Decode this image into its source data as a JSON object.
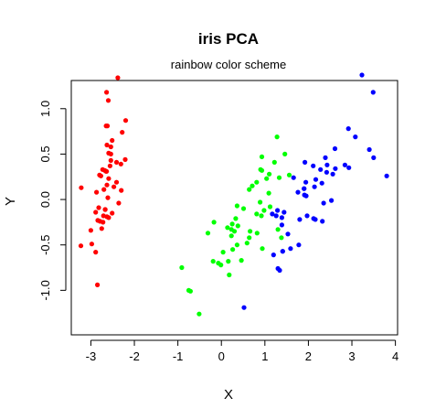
{
  "chart_data": {
    "type": "scatter",
    "title": "iris PCA",
    "subtitle": "rainbow color scheme",
    "xlabel": "X",
    "ylabel": "Y",
    "xlim": [
      -3.45,
      4.05
    ],
    "ylim": [
      -1.49,
      1.31
    ],
    "x_ticks": [
      -3,
      -2,
      -1,
      0,
      1,
      2,
      3,
      4
    ],
    "x_tick_labels": [
      "-3",
      "-2",
      "-1",
      "0",
      "1",
      "2",
      "3",
      "4"
    ],
    "y_ticks": [
      -1.0,
      -0.5,
      0.0,
      0.5,
      1.0
    ],
    "y_tick_labels": [
      "-1.0",
      "-0.5",
      "0.0",
      "0.5",
      "1.0"
    ],
    "grid": false,
    "series": [
      {
        "color": "#FF0000",
        "points": [
          [
            -2.68,
            0.32
          ],
          [
            -2.71,
            -0.18
          ],
          [
            -2.89,
            -0.14
          ],
          [
            -2.75,
            -0.32
          ],
          [
            -2.73,
            0.33
          ],
          [
            -2.28,
            0.74
          ],
          [
            -2.82,
            -0.09
          ],
          [
            -2.63,
            0.16
          ],
          [
            -2.89,
            -0.58
          ],
          [
            -2.67,
            -0.11
          ],
          [
            -2.51,
            0.65
          ],
          [
            -2.61,
            0.02
          ],
          [
            -2.79,
            -0.24
          ],
          [
            -3.23,
            -0.51
          ],
          [
            -2.64,
            1.18
          ],
          [
            -2.38,
            1.34
          ],
          [
            -2.62,
            0.81
          ],
          [
            -2.65,
            0.31
          ],
          [
            -2.2,
            0.87
          ],
          [
            -2.59,
            0.51
          ],
          [
            -2.31,
            0.39
          ],
          [
            -2.54,
            0.43
          ],
          [
            -3.22,
            0.13
          ],
          [
            -2.3,
            0.1
          ],
          [
            -2.36,
            -0.04
          ],
          [
            -2.51,
            -0.15
          ],
          [
            -2.47,
            0.14
          ],
          [
            -2.56,
            0.37
          ],
          [
            -2.64,
            0.31
          ],
          [
            -2.63,
            -0.19
          ],
          [
            -2.59,
            -0.2
          ],
          [
            -2.41,
            0.41
          ],
          [
            -2.65,
            0.81
          ],
          [
            -2.6,
            1.09
          ],
          [
            -2.67,
            -0.11
          ],
          [
            -2.87,
            0.08
          ],
          [
            -2.63,
            0.6
          ],
          [
            -2.8,
            0.27
          ],
          [
            -2.98,
            -0.49
          ],
          [
            -2.59,
            0.23
          ],
          [
            -2.77,
            0.26
          ],
          [
            -2.85,
            -0.94
          ],
          [
            -3.0,
            -0.34
          ],
          [
            -2.41,
            0.19
          ],
          [
            -2.21,
            0.44
          ],
          [
            -2.72,
            -0.25
          ],
          [
            -2.54,
            0.5
          ],
          [
            -2.84,
            -0.23
          ],
          [
            -2.54,
            0.58
          ],
          [
            -2.7,
            0.11
          ]
        ]
      },
      {
        "color": "#00FF00",
        "points": [
          [
            1.28,
            0.69
          ],
          [
            0.93,
            0.32
          ],
          [
            1.46,
            0.5
          ],
          [
            0.18,
            -0.83
          ],
          [
            1.09,
            0.07
          ],
          [
            0.64,
            -0.42
          ],
          [
            1.1,
            0.28
          ],
          [
            -0.75,
            -1.0
          ],
          [
            1.04,
            0.23
          ],
          [
            -0.01,
            -0.72
          ],
          [
            -0.51,
            -1.26
          ],
          [
            0.51,
            -0.1
          ],
          [
            0.26,
            -0.55
          ],
          [
            0.98,
            -0.12
          ],
          [
            -0.17,
            -0.25
          ],
          [
            0.93,
            0.47
          ],
          [
            0.66,
            -0.35
          ],
          [
            0.23,
            -0.33
          ],
          [
            0.94,
            -0.54
          ],
          [
            0.04,
            -0.58
          ],
          [
            1.12,
            -0.08
          ],
          [
            0.36,
            -0.07
          ],
          [
            1.3,
            -0.33
          ],
          [
            0.92,
            -0.18
          ],
          [
            0.71,
            0.15
          ],
          [
            0.9,
            0.33
          ],
          [
            1.33,
            0.24
          ],
          [
            1.56,
            0.27
          ],
          [
            0.81,
            -0.16
          ],
          [
            -0.31,
            -0.37
          ],
          [
            -0.07,
            -0.7
          ],
          [
            -0.19,
            -0.68
          ],
          [
            0.14,
            -0.31
          ],
          [
            1.38,
            -0.42
          ],
          [
            0.59,
            -0.48
          ],
          [
            0.81,
            0.19
          ],
          [
            1.22,
            0.41
          ],
          [
            0.82,
            -0.37
          ],
          [
            0.25,
            -0.27
          ],
          [
            0.16,
            -0.68
          ],
          [
            0.46,
            -0.67
          ],
          [
            0.89,
            -0.03
          ],
          [
            0.23,
            -0.4
          ],
          [
            -0.71,
            -1.01
          ],
          [
            0.36,
            -0.5
          ],
          [
            0.33,
            -0.21
          ],
          [
            0.38,
            -0.29
          ],
          [
            0.64,
            0.11
          ],
          [
            -0.91,
            -0.75
          ],
          [
            0.3,
            -0.35
          ]
        ]
      },
      {
        "color": "#0000FF",
        "points": [
          [
            2.53,
            -0.01
          ],
          [
            1.41,
            -0.57
          ],
          [
            2.62,
            0.34
          ],
          [
            1.97,
            -0.18
          ],
          [
            2.35,
            -0.04
          ],
          [
            3.4,
            0.55
          ],
          [
            0.52,
            -1.19
          ],
          [
            2.93,
            0.35
          ],
          [
            2.32,
            -0.24
          ],
          [
            2.92,
            0.78
          ],
          [
            1.66,
            0.24
          ],
          [
            1.8,
            -0.22
          ],
          [
            2.17,
            0.22
          ],
          [
            1.34,
            -0.78
          ],
          [
            1.59,
            -0.54
          ],
          [
            1.9,
            0.12
          ],
          [
            1.95,
            0.04
          ],
          [
            3.49,
            1.18
          ],
          [
            3.8,
            0.26
          ],
          [
            1.3,
            -0.76
          ],
          [
            2.43,
            0.38
          ],
          [
            1.2,
            -0.61
          ],
          [
            3.5,
            0.46
          ],
          [
            1.39,
            -0.2
          ],
          [
            2.28,
            0.33
          ],
          [
            2.61,
            0.56
          ],
          [
            1.26,
            -0.18
          ],
          [
            1.29,
            -0.12
          ],
          [
            2.12,
            -0.21
          ],
          [
            2.39,
            0.46
          ],
          [
            2.84,
            0.38
          ],
          [
            3.23,
            1.37
          ],
          [
            2.16,
            -0.22
          ],
          [
            1.44,
            -0.14
          ],
          [
            1.78,
            -0.5
          ],
          [
            3.08,
            0.69
          ],
          [
            2.14,
            0.14
          ],
          [
            1.91,
            0.05
          ],
          [
            1.17,
            -0.16
          ],
          [
            2.11,
            0.37
          ],
          [
            2.31,
            0.18
          ],
          [
            1.92,
            0.41
          ],
          [
            1.41,
            -0.57
          ],
          [
            2.56,
            0.28
          ],
          [
            2.42,
            0.3
          ],
          [
            1.94,
            0.19
          ],
          [
            1.53,
            -0.38
          ],
          [
            1.76,
            0.08
          ],
          [
            1.9,
            0.12
          ],
          [
            1.39,
            -0.28
          ]
        ]
      }
    ]
  }
}
